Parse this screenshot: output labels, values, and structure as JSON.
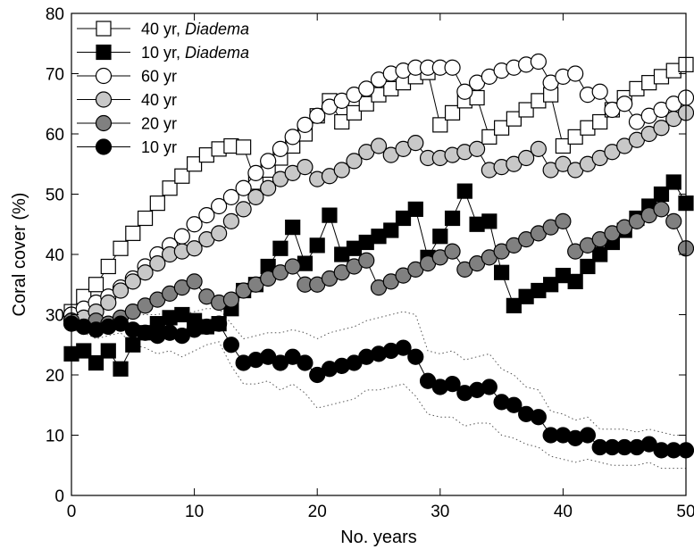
{
  "chart_data": {
    "type": "line",
    "xlabel": "No. years",
    "ylabel": "Coral cover (%)",
    "xlim": [
      0,
      50
    ],
    "ylim": [
      0,
      80
    ],
    "xticks": [
      "0",
      "10",
      "20",
      "30",
      "40",
      "50"
    ],
    "yticks": [
      "0",
      "10",
      "20",
      "30",
      "40",
      "50",
      "60",
      "70",
      "80"
    ],
    "grid": false,
    "legend_position": "top-left",
    "series": [
      {
        "id": "s40d",
        "label_a": "40 yr",
        "label_sep": ",",
        "label_b": "Diadema",
        "marker": "square",
        "fill": "#ffffff",
        "x": [
          0,
          1,
          2,
          3,
          4,
          5,
          6,
          7,
          8,
          9,
          10,
          11,
          12,
          13,
          14,
          15,
          16,
          17,
          18,
          19,
          20,
          21,
          22,
          23,
          24,
          25,
          26,
          27,
          28,
          29,
          30,
          31,
          32,
          33,
          34,
          35,
          36,
          37,
          38,
          39,
          40,
          41,
          42,
          43,
          44,
          45,
          46,
          47,
          48,
          49,
          50
        ],
        "y": [
          30.5,
          33,
          35,
          38,
          41,
          43.5,
          46,
          48.5,
          51,
          53,
          55,
          56.5,
          57.5,
          58,
          57.8,
          52,
          54,
          56,
          58,
          60,
          63,
          65.5,
          62,
          63.5,
          65,
          66.5,
          67.5,
          68.5,
          69.5,
          70.2,
          61.5,
          63.5,
          65.5,
          66,
          59.5,
          61,
          62.5,
          64,
          65.5,
          66.5,
          58,
          59.5,
          61,
          62,
          64,
          66,
          67.5,
          68.5,
          69.5,
          70.5,
          71.5
        ]
      },
      {
        "id": "s10d",
        "label_a": "10 yr",
        "label_sep": ",",
        "label_b": "Diadema",
        "marker": "square",
        "fill": "#000000",
        "x": [
          0,
          1,
          2,
          3,
          4,
          5,
          6,
          7,
          8,
          9,
          10,
          11,
          12,
          13,
          14,
          15,
          16,
          17,
          18,
          19,
          20,
          21,
          22,
          23,
          24,
          25,
          26,
          27,
          28,
          29,
          30,
          31,
          32,
          33,
          34,
          35,
          36,
          37,
          38,
          39,
          40,
          41,
          42,
          43,
          44,
          45,
          46,
          47,
          48,
          49,
          50
        ],
        "y": [
          23.5,
          24,
          22,
          24,
          21,
          25,
          27,
          28.5,
          29.5,
          30,
          29,
          28,
          28.5,
          31,
          34,
          35,
          38,
          41,
          44.5,
          38.5,
          41.5,
          46.5,
          40,
          41,
          42,
          43,
          44,
          46,
          47.5,
          39.5,
          43,
          46,
          50.5,
          45,
          45.5,
          37,
          31.5,
          33,
          34,
          35,
          36.5,
          35.5,
          38,
          40,
          42,
          44,
          46,
          48,
          50,
          52,
          48.5
        ]
      },
      {
        "id": "s60",
        "label": "60 yr",
        "marker": "circle",
        "fill": "#ffffff",
        "x": [
          0,
          1,
          2,
          3,
          4,
          5,
          6,
          7,
          8,
          9,
          10,
          11,
          12,
          13,
          14,
          15,
          16,
          17,
          18,
          19,
          20,
          21,
          22,
          23,
          24,
          25,
          26,
          27,
          28,
          29,
          30,
          31,
          32,
          33,
          34,
          35,
          36,
          37,
          38,
          39,
          40,
          41,
          42,
          43,
          44,
          45,
          46,
          47,
          48,
          49,
          50
        ],
        "y": [
          30,
          31,
          32,
          33,
          34.5,
          36,
          38,
          40,
          41.5,
          43,
          45,
          46.5,
          48,
          49.5,
          51,
          53.5,
          55.5,
          57.5,
          59.5,
          61.5,
          63,
          64.5,
          65.5,
          66.5,
          67.5,
          69,
          70,
          70.5,
          71,
          71,
          71,
          71,
          67,
          68.5,
          69.5,
          70.5,
          71,
          71.5,
          72,
          68.5,
          69.5,
          70,
          66.5,
          67,
          64,
          65,
          62,
          63,
          64,
          65,
          66
        ]
      },
      {
        "id": "s40",
        "label": "40 yr",
        "marker": "circle",
        "fill": "#c8c8c8",
        "x": [
          0,
          1,
          2,
          3,
          4,
          5,
          6,
          7,
          8,
          9,
          10,
          11,
          12,
          13,
          14,
          15,
          16,
          17,
          18,
          19,
          20,
          21,
          22,
          23,
          24,
          25,
          26,
          27,
          28,
          29,
          30,
          31,
          32,
          33,
          34,
          35,
          36,
          37,
          38,
          39,
          40,
          41,
          42,
          43,
          44,
          45,
          46,
          47,
          48,
          49,
          50
        ],
        "y": [
          29,
          29.5,
          30.5,
          32,
          34,
          35.5,
          37,
          38.5,
          40,
          40.5,
          41,
          42.5,
          43.5,
          45.5,
          47.5,
          49.5,
          51,
          52.5,
          53.5,
          54.5,
          52.5,
          53,
          54,
          55.5,
          57,
          58,
          56.5,
          57.5,
          58.5,
          56,
          56,
          56.5,
          57,
          57.5,
          54,
          54.5,
          55,
          56,
          57.5,
          54,
          55,
          54,
          55,
          56,
          57,
          58,
          59,
          60,
          61,
          62.5,
          63.5
        ]
      },
      {
        "id": "s20",
        "label": "20 yr",
        "marker": "circle",
        "fill": "#808080",
        "x": [
          0,
          1,
          2,
          3,
          4,
          5,
          6,
          7,
          8,
          9,
          10,
          11,
          12,
          13,
          14,
          15,
          16,
          17,
          18,
          19,
          20,
          21,
          22,
          23,
          24,
          25,
          26,
          27,
          28,
          29,
          30,
          31,
          32,
          33,
          34,
          35,
          36,
          37,
          38,
          39,
          40,
          41,
          42,
          43,
          44,
          45,
          46,
          47,
          48,
          49,
          50
        ],
        "y": [
          29,
          28,
          29,
          28.5,
          29.5,
          30.5,
          31.5,
          32.5,
          33.5,
          34.5,
          35.5,
          33,
          32,
          32.5,
          34,
          35,
          36,
          37,
          38,
          35,
          35,
          36,
          37,
          38,
          39,
          34.5,
          35.5,
          36.5,
          37.5,
          38.5,
          39.5,
          40.5,
          37.5,
          38.5,
          39.5,
          40.5,
          41.5,
          42.5,
          43.5,
          44.5,
          45.5,
          40.5,
          41.5,
          42.5,
          43.5,
          44.5,
          45.5,
          46.5,
          47.5,
          45.5,
          41
        ]
      },
      {
        "id": "s10",
        "label": "10 yr",
        "marker": "circle",
        "fill": "#000000",
        "x": [
          0,
          1,
          2,
          3,
          4,
          5,
          6,
          7,
          8,
          9,
          10,
          11,
          12,
          13,
          14,
          15,
          16,
          17,
          18,
          19,
          20,
          21,
          22,
          23,
          24,
          25,
          26,
          27,
          28,
          29,
          30,
          31,
          32,
          33,
          34,
          35,
          36,
          37,
          38,
          39,
          40,
          41,
          42,
          43,
          44,
          45,
          46,
          47,
          48,
          49,
          50
        ],
        "y": [
          28.5,
          28,
          27.5,
          28,
          28.5,
          27.5,
          27,
          26.5,
          27,
          26.5,
          27.5,
          28,
          28.5,
          25,
          22,
          22.5,
          23,
          22,
          23,
          22,
          20,
          21,
          21.5,
          22,
          23,
          23.5,
          24,
          24.5,
          23,
          19,
          18,
          18.5,
          17,
          17.5,
          18,
          15.5,
          15,
          13.5,
          13,
          10,
          10,
          9.5,
          10,
          8,
          8,
          8,
          8,
          8.5,
          7.5,
          7.5,
          7.5
        ]
      }
    ],
    "envelope": {
      "x": [
        0,
        1,
        2,
        3,
        4,
        5,
        6,
        7,
        8,
        9,
        10,
        11,
        12,
        13,
        14,
        15,
        16,
        17,
        18,
        19,
        20,
        21,
        22,
        23,
        24,
        25,
        26,
        27,
        28,
        29,
        30,
        31,
        32,
        33,
        34,
        35,
        36,
        37,
        38,
        39,
        40,
        41,
        42,
        43,
        44,
        45,
        46,
        47,
        48,
        49,
        50
      ],
      "upper": [
        29.5,
        29,
        29,
        29.5,
        30,
        30,
        30,
        30,
        30.5,
        30,
        30.5,
        31,
        31,
        28.5,
        26,
        26.5,
        27,
        27,
        27.5,
        27,
        26,
        27,
        27.5,
        28,
        29,
        29.5,
        30,
        30.5,
        30,
        24,
        23.5,
        24,
        22.5,
        23,
        23.5,
        21,
        20,
        18,
        17.5,
        14,
        13.5,
        12.5,
        13,
        11,
        11,
        11,
        10.5,
        11,
        10.5,
        10,
        10
      ],
      "lower": [
        27.5,
        27,
        26,
        26.5,
        27,
        25,
        24.5,
        23.5,
        24,
        23,
        24,
        25,
        25.5,
        21.5,
        18.5,
        18.5,
        19,
        17.5,
        18.5,
        17,
        14.5,
        15,
        15.5,
        16,
        17.5,
        17.5,
        18,
        18.5,
        16.5,
        13.5,
        13,
        13,
        11.5,
        12,
        12,
        10,
        9.5,
        8.5,
        8,
        6.5,
        6,
        5.5,
        6,
        5.5,
        5,
        5,
        5,
        5.5,
        4.5,
        4.5,
        4.5
      ]
    }
  }
}
